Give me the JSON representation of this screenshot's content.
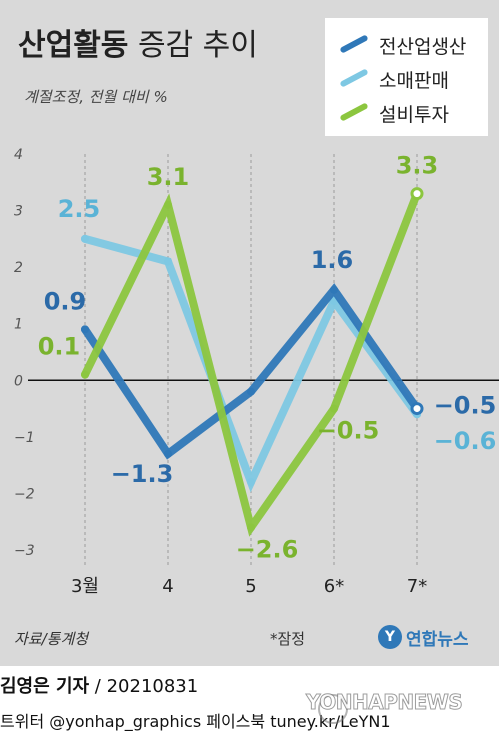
{
  "header": {
    "title_bold": "산업활동",
    "title_rest": " 증감 추이",
    "subtitle": "계절조정, 전월 대비 %"
  },
  "legend": [
    {
      "label": "전산업생산",
      "color": "#2f78b8"
    },
    {
      "label": "소매판매",
      "color": "#7ec8e3"
    },
    {
      "label": "설비투자",
      "color": "#8cc63f"
    }
  ],
  "chart_data": {
    "type": "line",
    "categories": [
      "3월",
      "4",
      "5",
      "6*",
      "7*"
    ],
    "ylim": [
      -3,
      4
    ],
    "yticks": [
      "4",
      "3",
      "2",
      "1",
      "0",
      "−1",
      "−2",
      "−3"
    ],
    "grid": "vertical-dashed",
    "legend_position": "top-right",
    "series": [
      {
        "name": "전산업생산",
        "color": "#2f78b8",
        "label_color": "#2b6aa8",
        "values": [
          0.9,
          -1.3,
          -0.2,
          1.6,
          -0.5
        ],
        "labels": [
          "0.9",
          "−1.3",
          "",
          "1.6",
          "−0.5"
        ]
      },
      {
        "name": "소매판매",
        "color": "#7ec8e3",
        "label_color": "#5ab3d6",
        "values": [
          2.5,
          2.1,
          -1.8,
          1.4,
          -0.6
        ],
        "labels": [
          "2.5",
          "",
          "",
          "",
          "−0.6"
        ]
      },
      {
        "name": "설비투자",
        "color": "#8cc63f",
        "label_color": "#7ab32e",
        "values": [
          0.1,
          3.1,
          -2.6,
          -0.5,
          3.3
        ],
        "labels": [
          "0.1",
          "3.1",
          "−2.6",
          "−0.5",
          "3.3"
        ]
      }
    ]
  },
  "footer_note": {
    "source": "자료/통계청",
    "note": "*잠정",
    "logo_mark": "Y",
    "logo": "연합뉴스"
  },
  "credit": {
    "name": "김영은 기자",
    "date": " / 20210831",
    "social": "트위터 @yonhap_graphics  페이스북 tuney.kr/LeYN1",
    "watermark": "YONHAPNEWS"
  }
}
